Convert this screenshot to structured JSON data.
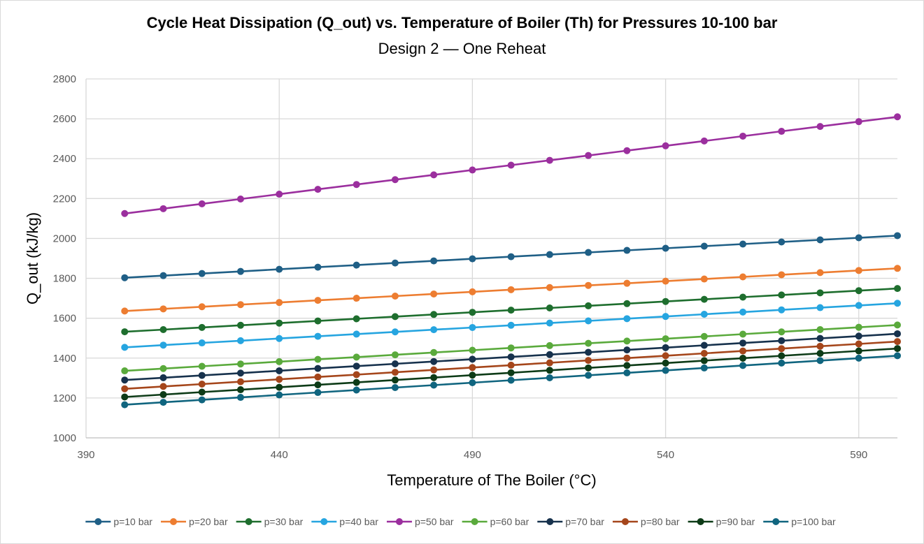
{
  "chart_data": {
    "type": "line",
    "title": "Cycle Heat Dissipation  (Q_out) vs. Temperature of Boiler (Th) for Pressures 10-100 bar",
    "subtitle": "Design 2 — One Reheat",
    "xlabel": "Temperature of The Boiler (°C)",
    "ylabel": "Q_out (kJ/kg)",
    "xlim": [
      390,
      600
    ],
    "ylim": [
      1000,
      2800
    ],
    "xticks": [
      390,
      440,
      490,
      540,
      590
    ],
    "yticks": [
      1000,
      1200,
      1400,
      1600,
      1800,
      2000,
      2200,
      2400,
      2600,
      2800
    ],
    "grid": true,
    "legend_position": "bottom",
    "x": [
      400,
      410,
      420,
      430,
      440,
      450,
      460,
      470,
      480,
      490,
      500,
      510,
      520,
      530,
      540,
      550,
      560,
      570,
      580,
      590,
      600
    ],
    "series": [
      {
        "name": "p=10 bar",
        "color": "#1f5f86",
        "start": 1803,
        "end": 2014
      },
      {
        "name": "p=20 bar",
        "color": "#ed7d31",
        "start": 1636,
        "end": 1850
      },
      {
        "name": "p=30 bar",
        "color": "#1e6e2e",
        "start": 1532,
        "end": 1749
      },
      {
        "name": "p=40 bar",
        "color": "#26a5e0",
        "start": 1454,
        "end": 1675
      },
      {
        "name": "p=50 bar",
        "color": "#9b2f9e",
        "start": 2125,
        "end": 2610
      },
      {
        "name": "p=60 bar",
        "color": "#5aaa3c",
        "start": 1336,
        "end": 1566
      },
      {
        "name": "p=70 bar",
        "color": "#17324d",
        "start": 1290,
        "end": 1522
      },
      {
        "name": "p=80 bar",
        "color": "#a5461b",
        "start": 1246,
        "end": 1483
      },
      {
        "name": "p=90 bar",
        "color": "#0d3b17",
        "start": 1205,
        "end": 1448
      },
      {
        "name": "p=100 bar",
        "color": "#10657f",
        "start": 1166,
        "end": 1412
      }
    ]
  }
}
